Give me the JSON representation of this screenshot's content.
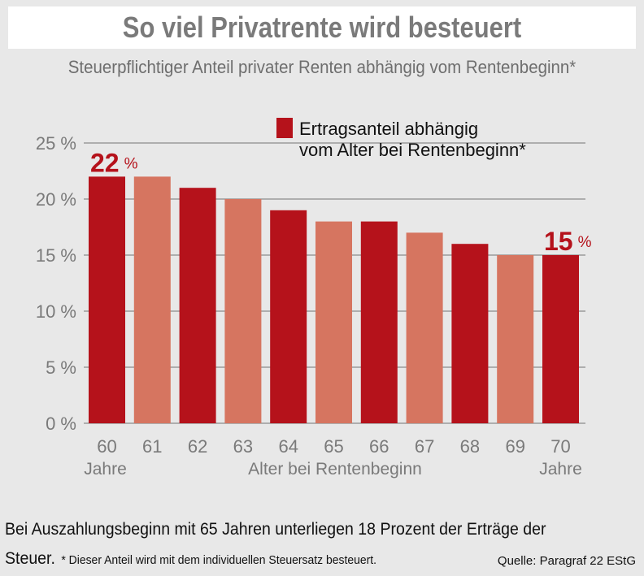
{
  "header": {
    "title": "So viel Privatrente wird besteuert",
    "subtitle": "Steuerpflichtiger Anteil privater Renten abhängig vom Rentenbeginn*"
  },
  "chart_data": {
    "type": "bar",
    "categories": [
      "60",
      "61",
      "62",
      "63",
      "64",
      "65",
      "66",
      "67",
      "68",
      "69",
      "70"
    ],
    "values": [
      22,
      22,
      21,
      20,
      19,
      18,
      18,
      17,
      16,
      15,
      15
    ],
    "ylim": [
      0,
      25
    ],
    "yticks": [
      0,
      5,
      10,
      15,
      20,
      25
    ],
    "ytick_labels": [
      "0 %",
      "5 %",
      "10 %",
      "15 %",
      "20 %",
      "25 %"
    ],
    "xlabel": "Alter bei Rentenbeginn",
    "x_sublabels": {
      "first": "Jahre",
      "last": "Jahre"
    },
    "legend": {
      "line1": "Ertragsanteil abhängig",
      "line2": "vom Alter bei Rentenbeginn*",
      "placement": "top-center"
    },
    "highlights": [
      {
        "index": 0,
        "value": "22",
        "unit": "%"
      },
      {
        "index": 10,
        "value": "15",
        "unit": "%"
      }
    ],
    "grid": true,
    "colors": {
      "dark": "#b5121b",
      "light": "#d67560",
      "grid": "#8a8a8a",
      "highlight_text": "#b5121b"
    }
  },
  "footer": {
    "text_line1": "Bei Auszahlungsbeginn mit 65 Jahren unterliegen 18 Prozent der Erträge der",
    "text_line2": "Steuer.",
    "footnote": "* Dieser Anteil wird mit dem individuellen Steuersatz besteuert.",
    "source": "Quelle: Paragraf 22 EStG"
  }
}
